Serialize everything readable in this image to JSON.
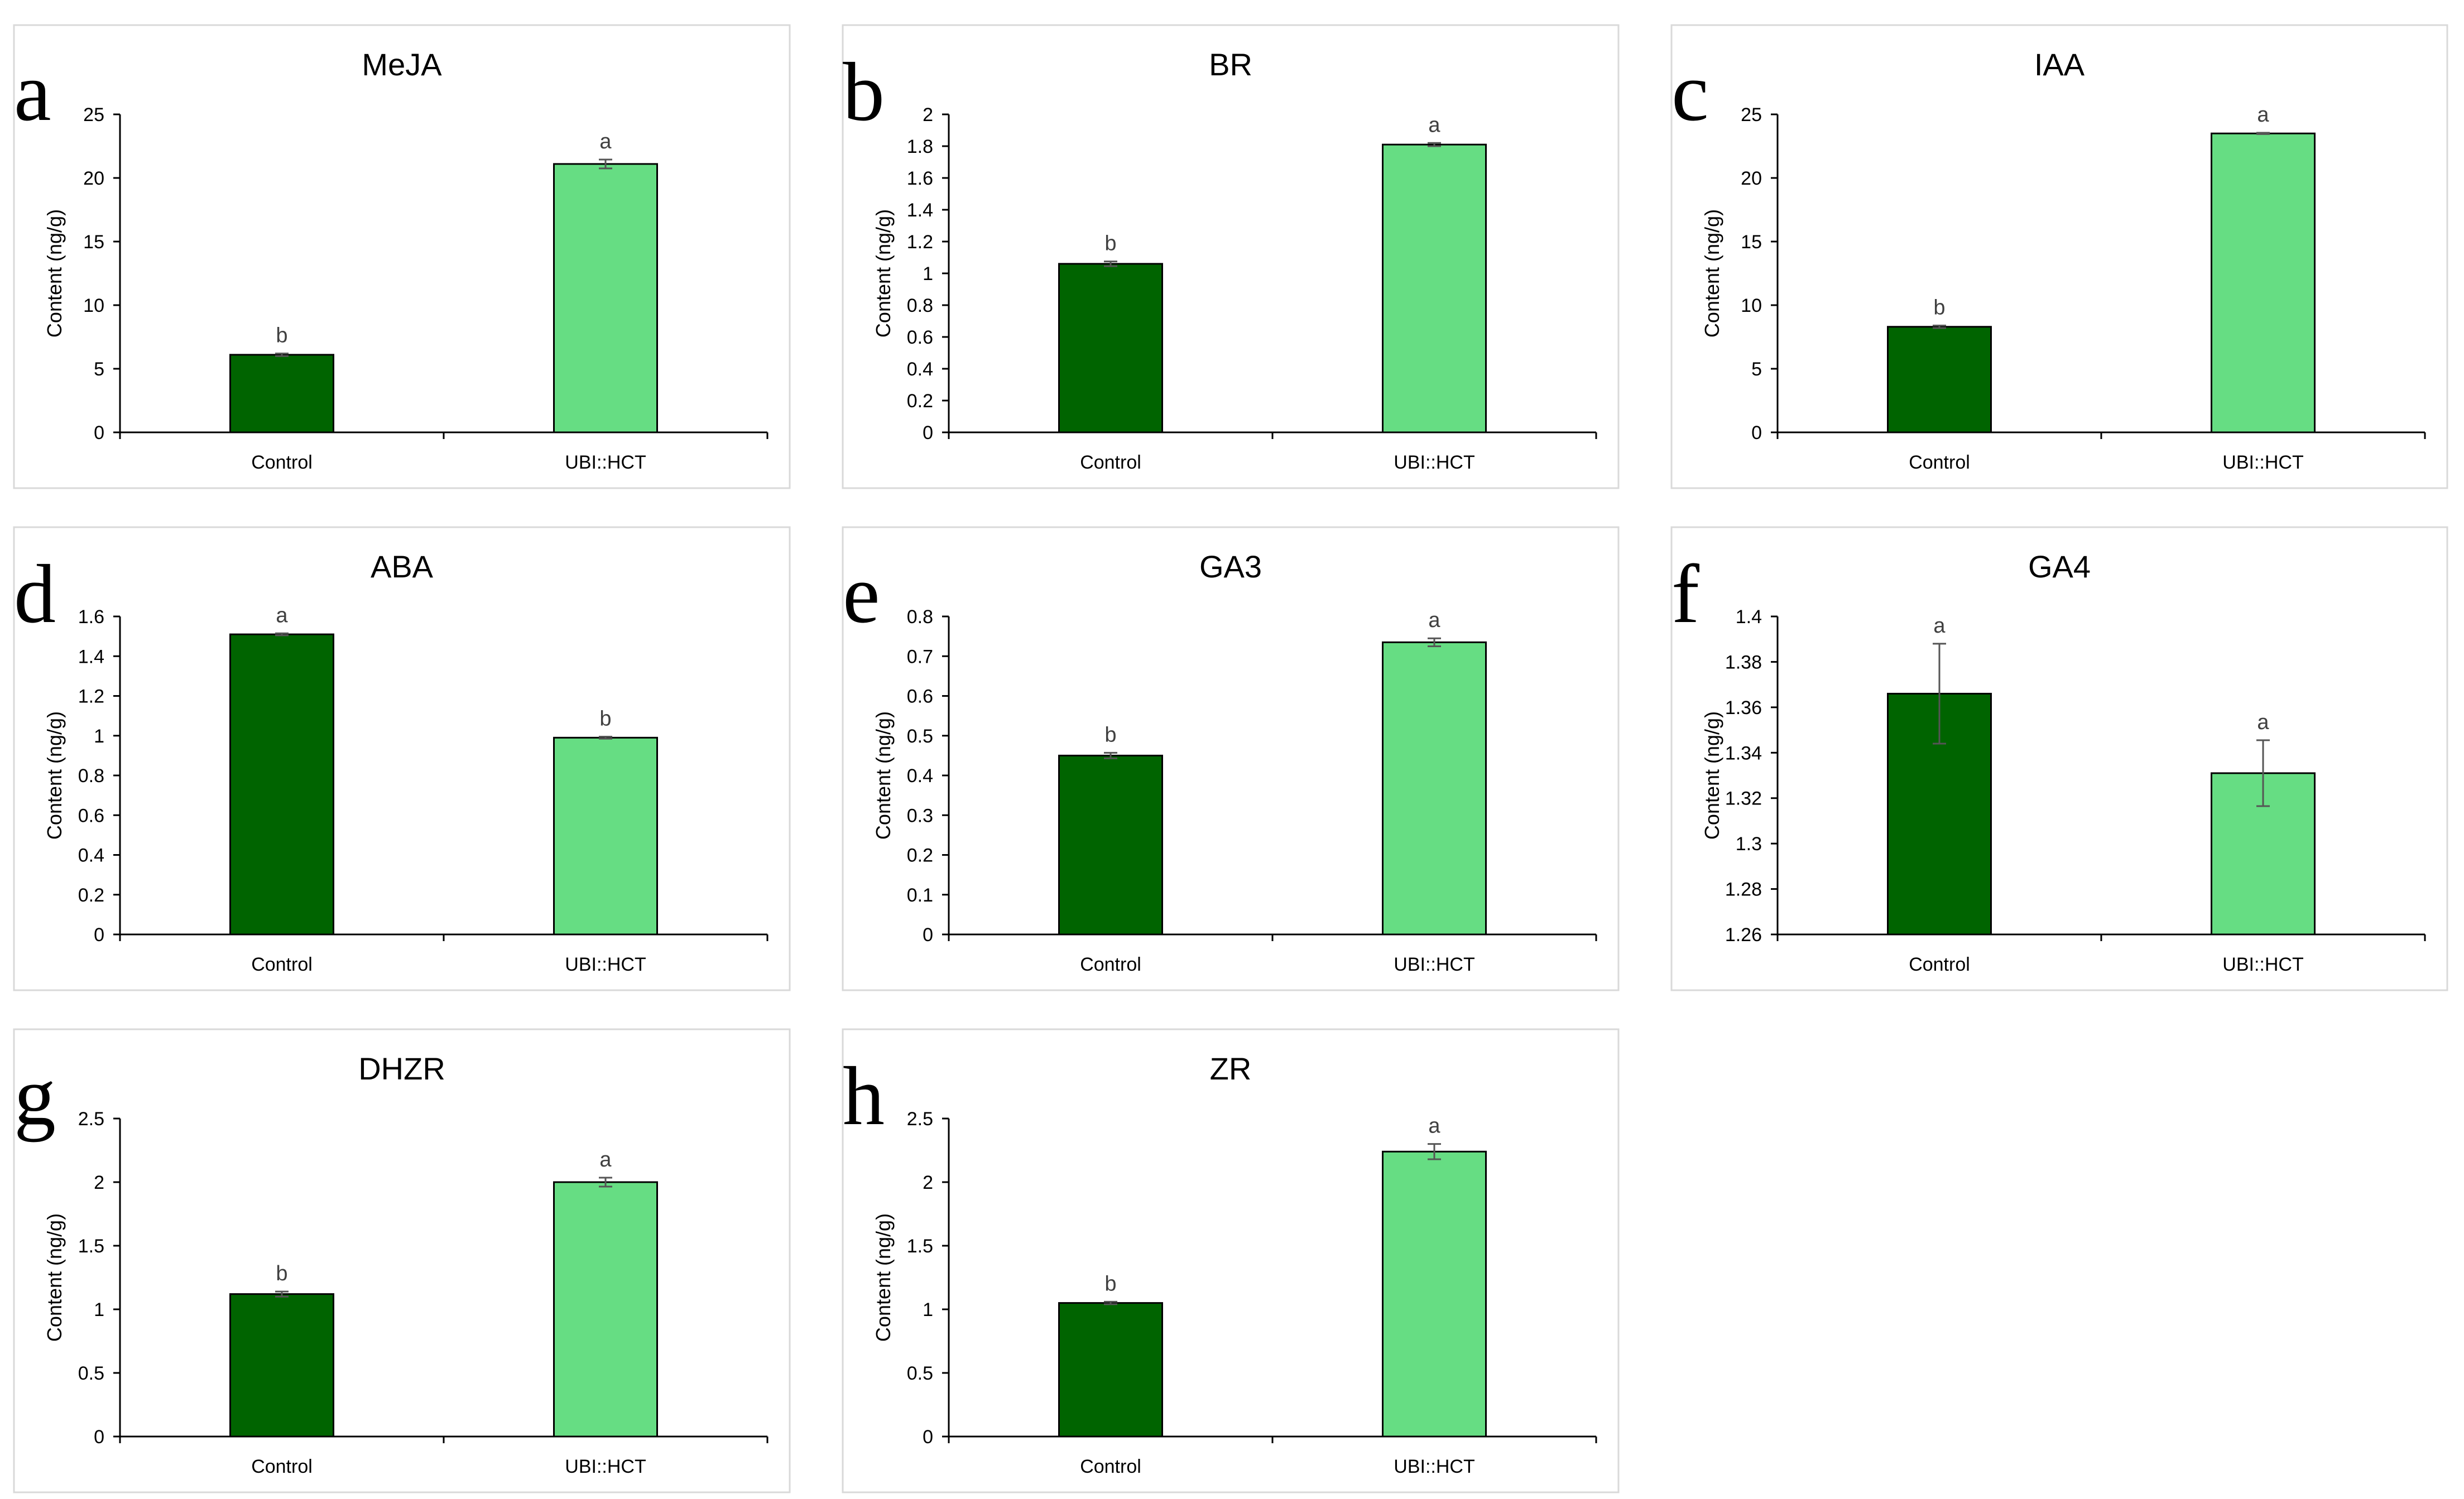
{
  "colors": {
    "control": "#006400",
    "treatment": "#66dd83"
  },
  "chart_data": [
    {
      "type": "bar",
      "panel": "a",
      "title": "MeJA",
      "ylabel": "Content (ng/g)",
      "categories": [
        "Control",
        "UBI::HCT"
      ],
      "values": [
        6.1,
        21.1
      ],
      "errors": [
        0.1,
        0.35
      ],
      "significance": [
        "b",
        "a"
      ],
      "ylim": [
        0,
        25
      ],
      "yticks": [
        0,
        5,
        10,
        15,
        20,
        25
      ],
      "ytick_labels": [
        "0",
        "5",
        "10",
        "15",
        "20",
        "25"
      ]
    },
    {
      "type": "bar",
      "panel": "b",
      "title": "BR",
      "ylabel": "Content (ng/g)",
      "categories": [
        "Control",
        "UBI::HCT"
      ],
      "values": [
        1.06,
        1.81
      ],
      "errors": [
        0.015,
        0.01
      ],
      "significance": [
        "b",
        "a"
      ],
      "ylim": [
        0,
        2
      ],
      "yticks": [
        0,
        0.2,
        0.4,
        0.6,
        0.8,
        1,
        1.2,
        1.4,
        1.6,
        1.8,
        2
      ],
      "ytick_labels": [
        "0",
        "0.2",
        "0.4",
        "0.6",
        "0.8",
        "1",
        "1.2",
        "1.4",
        "1.6",
        "1.8",
        "2"
      ]
    },
    {
      "type": "bar",
      "panel": "c",
      "title": "IAA",
      "ylabel": "Content (ng/g)",
      "categories": [
        "Control",
        "UBI::HCT"
      ],
      "values": [
        8.3,
        23.5
      ],
      "errors": [
        0.1,
        0.05
      ],
      "significance": [
        "b",
        "a"
      ],
      "ylim": [
        0,
        25
      ],
      "yticks": [
        0,
        5,
        10,
        15,
        20,
        25
      ],
      "ytick_labels": [
        "0",
        "5",
        "10",
        "15",
        "20",
        "25"
      ]
    },
    {
      "type": "bar",
      "panel": "d",
      "title": "ABA",
      "ylabel": "Content (ng/g)",
      "categories": [
        "Control",
        "UBI::HCT"
      ],
      "values": [
        1.51,
        0.99
      ],
      "errors": [
        0.005,
        0.005
      ],
      "significance": [
        "a",
        "b"
      ],
      "ylim": [
        0,
        1.6
      ],
      "yticks": [
        0,
        0.2,
        0.4,
        0.6,
        0.8,
        1,
        1.2,
        1.4,
        1.6
      ],
      "ytick_labels": [
        "0",
        "0.2",
        "0.4",
        "0.6",
        "0.8",
        "1",
        "1.2",
        "1.4",
        "1.6"
      ]
    },
    {
      "type": "bar",
      "panel": "e",
      "title": "GA3",
      "ylabel": "Content (ng/g)",
      "categories": [
        "Control",
        "UBI::HCT"
      ],
      "values": [
        0.45,
        0.735
      ],
      "errors": [
        0.007,
        0.01
      ],
      "significance": [
        "b",
        "a"
      ],
      "ylim": [
        0,
        0.8
      ],
      "yticks": [
        0,
        0.1,
        0.2,
        0.3,
        0.4,
        0.5,
        0.6,
        0.7,
        0.8
      ],
      "ytick_labels": [
        "0",
        "0.1",
        "0.2",
        "0.3",
        "0.4",
        "0.5",
        "0.6",
        "0.7",
        "0.8"
      ]
    },
    {
      "type": "bar",
      "panel": "f",
      "title": "GA4",
      "ylabel": "Content (ng/g)",
      "categories": [
        "Control",
        "UBI::HCT"
      ],
      "values": [
        1.366,
        1.331
      ],
      "errors": [
        0.022,
        0.0145
      ],
      "significance": [
        "a",
        "a"
      ],
      "ylim": [
        1.26,
        1.4
      ],
      "yticks": [
        1.26,
        1.28,
        1.3,
        1.32,
        1.34,
        1.36,
        1.38,
        1.4
      ],
      "ytick_labels": [
        "1.26",
        "1.28",
        "1.3",
        "1.32",
        "1.34",
        "1.36",
        "1.38",
        "1.4"
      ]
    },
    {
      "type": "bar",
      "panel": "g",
      "title": "DHZR",
      "ylabel": "Content (ng/g)",
      "categories": [
        "Control",
        "UBI::HCT"
      ],
      "values": [
        1.12,
        2.0
      ],
      "errors": [
        0.02,
        0.035
      ],
      "significance": [
        "b",
        "a"
      ],
      "ylim": [
        0,
        2.5
      ],
      "yticks": [
        0,
        0.5,
        1,
        1.5,
        2,
        2.5
      ],
      "ytick_labels": [
        "0",
        "0.5",
        "1",
        "1.5",
        "2",
        "2.5"
      ]
    },
    {
      "type": "bar",
      "panel": "h",
      "title": "ZR",
      "ylabel": "Content (ng/g)",
      "categories": [
        "Control",
        "UBI::HCT"
      ],
      "values": [
        1.05,
        2.24
      ],
      "errors": [
        0.01,
        0.06
      ],
      "significance": [
        "b",
        "a"
      ],
      "ylim": [
        0,
        2.5
      ],
      "yticks": [
        0,
        0.5,
        1,
        1.5,
        2,
        2.5
      ],
      "ytick_labels": [
        "0",
        "0.5",
        "1",
        "1.5",
        "2",
        "2.5"
      ]
    }
  ]
}
